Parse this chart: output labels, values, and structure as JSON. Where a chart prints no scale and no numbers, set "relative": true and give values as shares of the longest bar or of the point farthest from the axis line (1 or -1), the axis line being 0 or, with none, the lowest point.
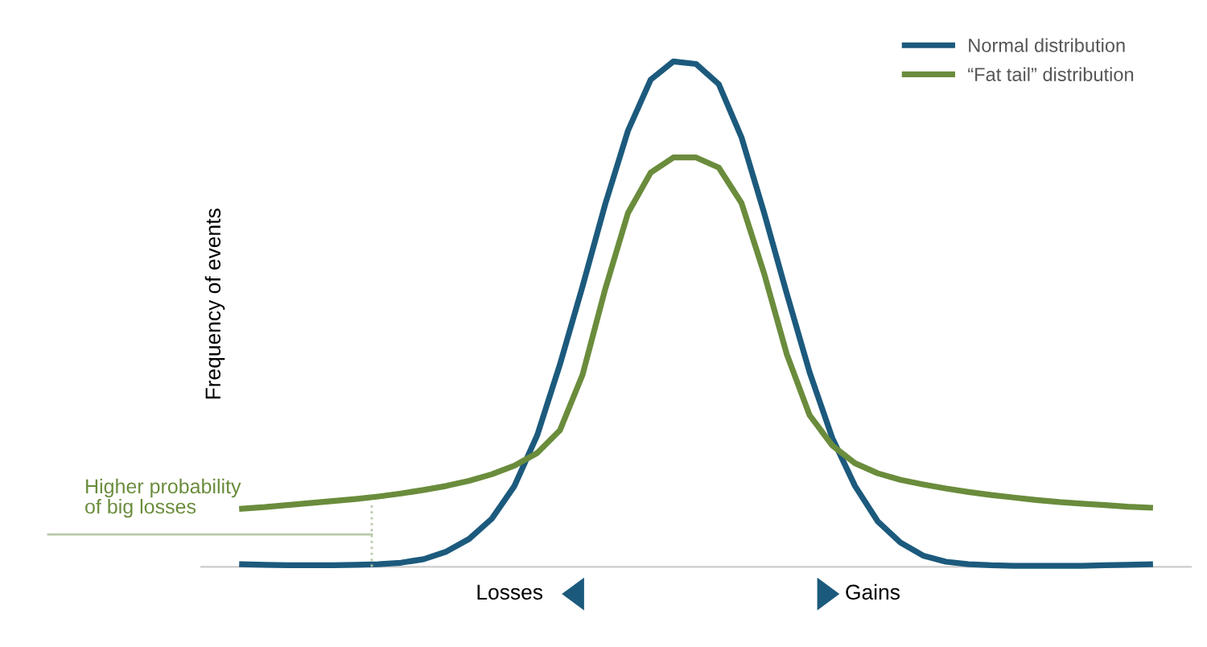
{
  "chart_data": {
    "type": "line",
    "relative": true,
    "ylabel": "Frequency of events",
    "legend": "top right",
    "marker": "none",
    "line_style": "solid",
    "categories": [
      null,
      null,
      null,
      null,
      null,
      null,
      null,
      null,
      null,
      null,
      null,
      null,
      null,
      null,
      null,
      null,
      null,
      null,
      null,
      null,
      null,
      null,
      null,
      null,
      null,
      null,
      null,
      null,
      null,
      null,
      null,
      null,
      null,
      null,
      null,
      null,
      null,
      null,
      null,
      null,
      null
    ],
    "series": [
      {
        "name": "Normal distribution",
        "color": "#1c5a7d",
        "values": [
          0.005,
          0.004,
          0.003,
          0.003,
          0.003,
          0.004,
          0.005,
          0.008,
          0.015,
          0.03,
          0.055,
          0.095,
          0.16,
          0.26,
          0.4,
          0.555,
          0.718,
          0.863,
          0.964,
          1,
          0.995,
          0.955,
          0.85,
          0.7,
          0.54,
          0.385,
          0.255,
          0.16,
          0.09,
          0.048,
          0.022,
          0.01,
          0.005,
          0.003,
          0.002,
          0.002,
          0.002,
          0.002,
          0.003,
          0.004,
          0.005
        ]
      },
      {
        "name": "“Fat tail” distribution",
        "color": "#6a8c3c",
        "values": [
          0.115,
          0.118,
          0.122,
          0.126,
          0.13,
          0.134,
          0.139,
          0.145,
          0.152,
          0.16,
          0.17,
          0.183,
          0.2,
          0.225,
          0.27,
          0.38,
          0.55,
          0.7,
          0.78,
          0.81,
          0.81,
          0.79,
          0.72,
          0.58,
          0.42,
          0.3,
          0.24,
          0.205,
          0.185,
          0.172,
          0.163,
          0.155,
          0.148,
          0.142,
          0.137,
          0.132,
          0.128,
          0.125,
          0.122,
          0.119,
          0.117
        ]
      }
    ],
    "annotations": [
      "Higher probability\nof big losses",
      "Losses",
      "Gains"
    ]
  }
}
